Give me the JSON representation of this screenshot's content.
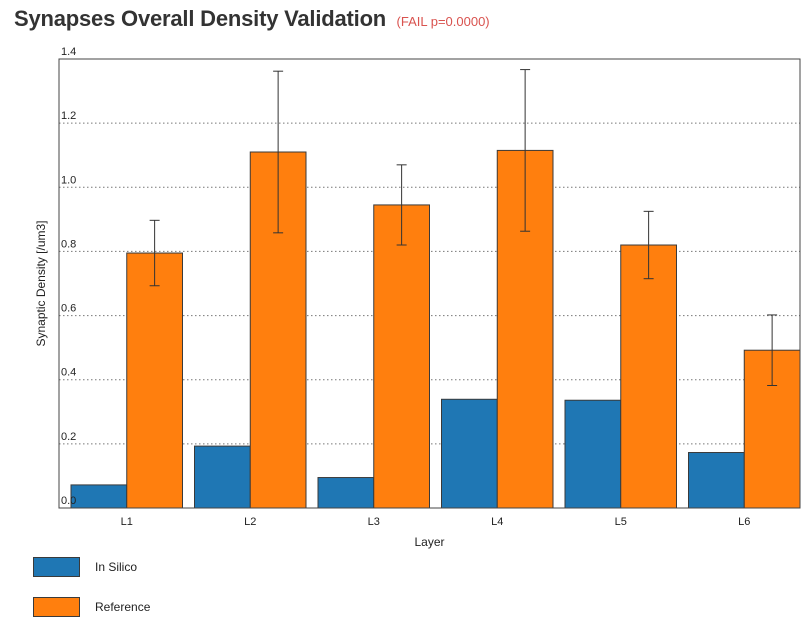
{
  "header": {
    "title": "Synapses Overall Density Validation",
    "status": "(FAIL p=0.0000)",
    "status_color": "#d9534f"
  },
  "chart_data": {
    "type": "bar",
    "xlabel": "Layer",
    "ylabel": "Synaptic Density [/um3]",
    "ylim": [
      0,
      1.4
    ],
    "yticks": [
      "0.0",
      "0.2",
      "0.4",
      "0.6",
      "0.8",
      "1.0",
      "1.2",
      "1.4"
    ],
    "categories": [
      "L1",
      "L2",
      "L3",
      "L4",
      "L5",
      "L6"
    ],
    "grid": "horizontal dotted",
    "legend_position": "bottom-left",
    "series": [
      {
        "name": "In Silico",
        "color": "#1f77b4",
        "values": [
          0.072,
          0.193,
          0.095,
          0.339,
          0.336,
          0.173
        ]
      },
      {
        "name": "Reference",
        "color": "#ff7f0e",
        "values": [
          0.795,
          1.11,
          0.945,
          1.115,
          0.82,
          0.492
        ],
        "error": [
          0.102,
          0.252,
          0.125,
          0.252,
          0.105,
          0.11
        ]
      }
    ]
  }
}
